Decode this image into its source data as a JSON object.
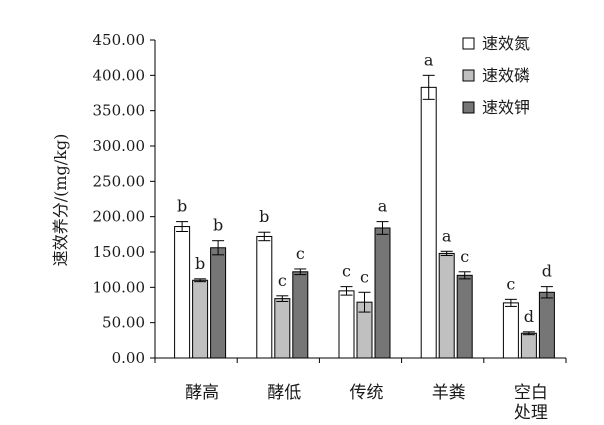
{
  "chart_data": {
    "type": "bar",
    "ylabel": "速效养分/(mg/kg)",
    "xlabel": "",
    "ylim": [
      0,
      450
    ],
    "yticks": [
      "0.00",
      "50.00",
      "100.00",
      "150.00",
      "200.00",
      "250.00",
      "300.00",
      "350.00",
      "400.00",
      "450.00"
    ],
    "tick_values": [
      0,
      50,
      100,
      150,
      200,
      250,
      300,
      350,
      400,
      450
    ],
    "categories": [
      "酵高",
      "酵低",
      "传统",
      "羊粪",
      "空白\n处理"
    ],
    "legend_position": "top-right",
    "grid": false,
    "series": [
      {
        "name": "速效氮",
        "color": "#ffffff",
        "values": [
          186,
          172,
          95,
          383,
          78
        ],
        "errors": [
          7,
          6,
          6,
          17,
          5
        ],
        "labels": [
          "b",
          "b",
          "c",
          "a",
          "c"
        ]
      },
      {
        "name": "速效磷",
        "color": "#c0c0c0",
        "values": [
          110,
          84,
          79,
          148,
          35
        ],
        "errors": [
          2,
          4,
          14,
          3,
          2
        ],
        "labels": [
          "b",
          "c",
          "c",
          "a",
          "d"
        ]
      },
      {
        "name": "速效钾",
        "color": "#767676",
        "values": [
          156,
          122,
          184,
          117,
          93
        ],
        "errors": [
          10,
          4,
          9,
          5,
          8
        ],
        "labels": [
          "b",
          "c",
          "a",
          "c",
          "d"
        ]
      }
    ]
  }
}
